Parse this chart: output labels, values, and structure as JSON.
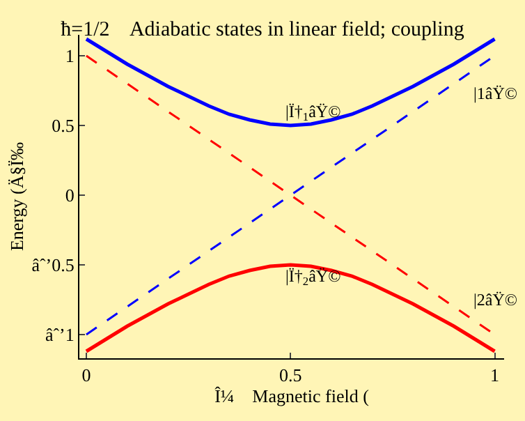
{
  "chart_data": {
    "type": "line",
    "title": "ħ=1/2    Adiabatic states in linear field; coupling",
    "xlabel": "Î¼    Magnetic field (",
    "ylabel": "Energy (Ä§Ï‰",
    "x": [
      0,
      0.05,
      0.1,
      0.15,
      0.2,
      0.25,
      0.3,
      0.35,
      0.4,
      0.45,
      0.5,
      0.55,
      0.6,
      0.65,
      0.7,
      0.75,
      0.8,
      0.85,
      0.9,
      0.95,
      1
    ],
    "series": [
      {
        "color": "#0000ff",
        "line_style": "solid",
        "values": [
          1.12,
          1.03,
          0.94,
          0.86,
          0.78,
          0.71,
          0.64,
          0.58,
          0.54,
          0.51,
          0.5,
          0.51,
          0.54,
          0.58,
          0.64,
          0.71,
          0.78,
          0.86,
          0.94,
          1.03,
          1.12
        ]
      },
      {
        "color": "#ff0000",
        "line_style": "solid",
        "values": [
          -1.12,
          -1.03,
          -0.94,
          -0.86,
          -0.78,
          -0.71,
          -0.64,
          -0.58,
          -0.54,
          -0.51,
          -0.5,
          -0.51,
          -0.54,
          -0.58,
          -0.64,
          -0.71,
          -0.78,
          -0.86,
          -0.94,
          -1.03,
          -1.12
        ]
      },
      {
        "color": "#0000ff",
        "line_style": "dashed",
        "values": [
          -1,
          -0.9,
          -0.8,
          -0.7,
          -0.6,
          -0.5,
          -0.4,
          -0.3,
          -0.2,
          -0.1,
          0,
          0.1,
          0.2,
          0.3,
          0.4,
          0.5,
          0.6,
          0.7,
          0.8,
          0.9,
          1
        ]
      },
      {
        "color": "#ff0000",
        "line_style": "dashed",
        "values": [
          1,
          0.9,
          0.8,
          0.7,
          0.6,
          0.5,
          0.4,
          0.3,
          0.2,
          0.1,
          0,
          -0.1,
          -0.2,
          -0.3,
          -0.4,
          -0.5,
          -0.6,
          -0.7,
          -0.8,
          -0.9,
          -1
        ]
      }
    ],
    "annotations": [
      "|Ï†$_{1}$âŸ©",
      "|Ï†$_{2}$âŸ©",
      "|1âŸ©",
      "|2âŸ©"
    ],
    "xlim": [
      -0.017,
      1.023
    ],
    "ylim": [
      -1.17,
      1.15
    ],
    "xticks": [
      0,
      0.5,
      1
    ],
    "yticks": [
      1,
      0.5,
      0,
      {
        "value": -0.5,
        "label": "âˆ’0.5"
      },
      {
        "value": -1,
        "label": "âˆ’1"
      }
    ],
    "grid": false,
    "marker": "none"
  }
}
